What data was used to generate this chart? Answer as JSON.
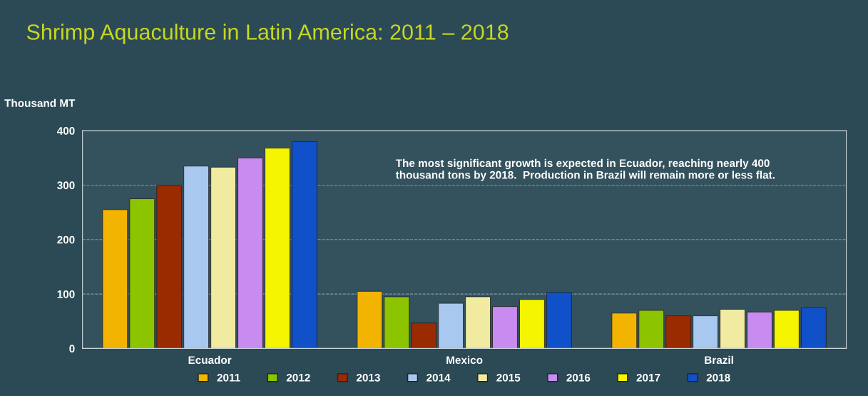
{
  "chart_data": {
    "type": "bar",
    "title": "Shrimp Aquaculture in Latin America: 2011 – 2018",
    "ylabel": "Thousand MT",
    "categories": [
      "Ecuador",
      "Mexico",
      "Brazil"
    ],
    "series": [
      {
        "name": "2011",
        "color": "#f2b400",
        "values": [
          255,
          105,
          65
        ]
      },
      {
        "name": "2012",
        "color": "#8cc400",
        "values": [
          275,
          95,
          70
        ]
      },
      {
        "name": "2013",
        "color": "#9a2a00",
        "values": [
          300,
          47,
          60
        ]
      },
      {
        "name": "2014",
        "color": "#a8c8f0",
        "values": [
          335,
          83,
          60
        ]
      },
      {
        "name": "2015",
        "color": "#f0eba0",
        "values": [
          333,
          95,
          72
        ]
      },
      {
        "name": "2016",
        "color": "#c88cf0",
        "values": [
          350,
          77,
          67
        ]
      },
      {
        "name": "2017",
        "color": "#f5f500",
        "values": [
          368,
          90,
          70
        ]
      },
      {
        "name": "2018",
        "color": "#1050c8",
        "values": [
          380,
          103,
          75
        ]
      }
    ],
    "ylim": [
      0,
      400
    ],
    "yticks": [
      0,
      100,
      200,
      300,
      400
    ],
    "grid": "y",
    "legend": "bottom",
    "annotations": [
      "The most significant growth is expected in Ecuador, reaching nearly 400 thousand tons by 2018.  Production in Brazil will remain more or less flat."
    ]
  }
}
